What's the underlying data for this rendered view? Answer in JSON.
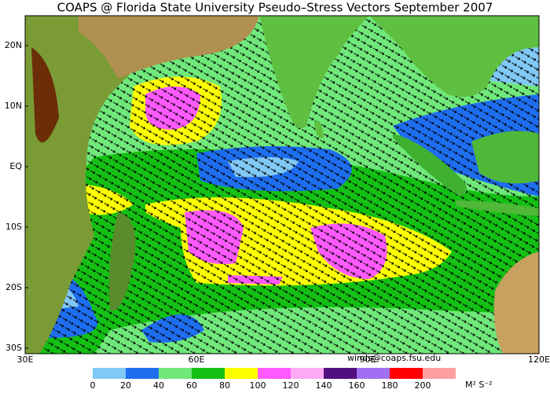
{
  "title": "COAPS @ Florida State University Pseudo–Stress Vectors September 2007",
  "map": {
    "lat_labels": [
      "20N",
      "10N",
      "EQ",
      "10S",
      "20S",
      "30S"
    ],
    "lon_labels": [
      "30E",
      "60E",
      "90E",
      "120E"
    ]
  },
  "credit": "winds@coaps.fsu.edu",
  "colorbar": {
    "colors": [
      "#80c8f5",
      "#1e6ef0",
      "#70e87a",
      "#14c014",
      "#ffff00",
      "#ff5aff",
      "#ffaaf5",
      "#50107f",
      "#a070f0",
      "#ff0000",
      "#ffa0a0"
    ],
    "ticks": [
      0,
      20,
      40,
      60,
      80,
      100,
      120,
      140,
      160,
      180,
      200
    ],
    "unit": "M² S⁻²"
  }
}
